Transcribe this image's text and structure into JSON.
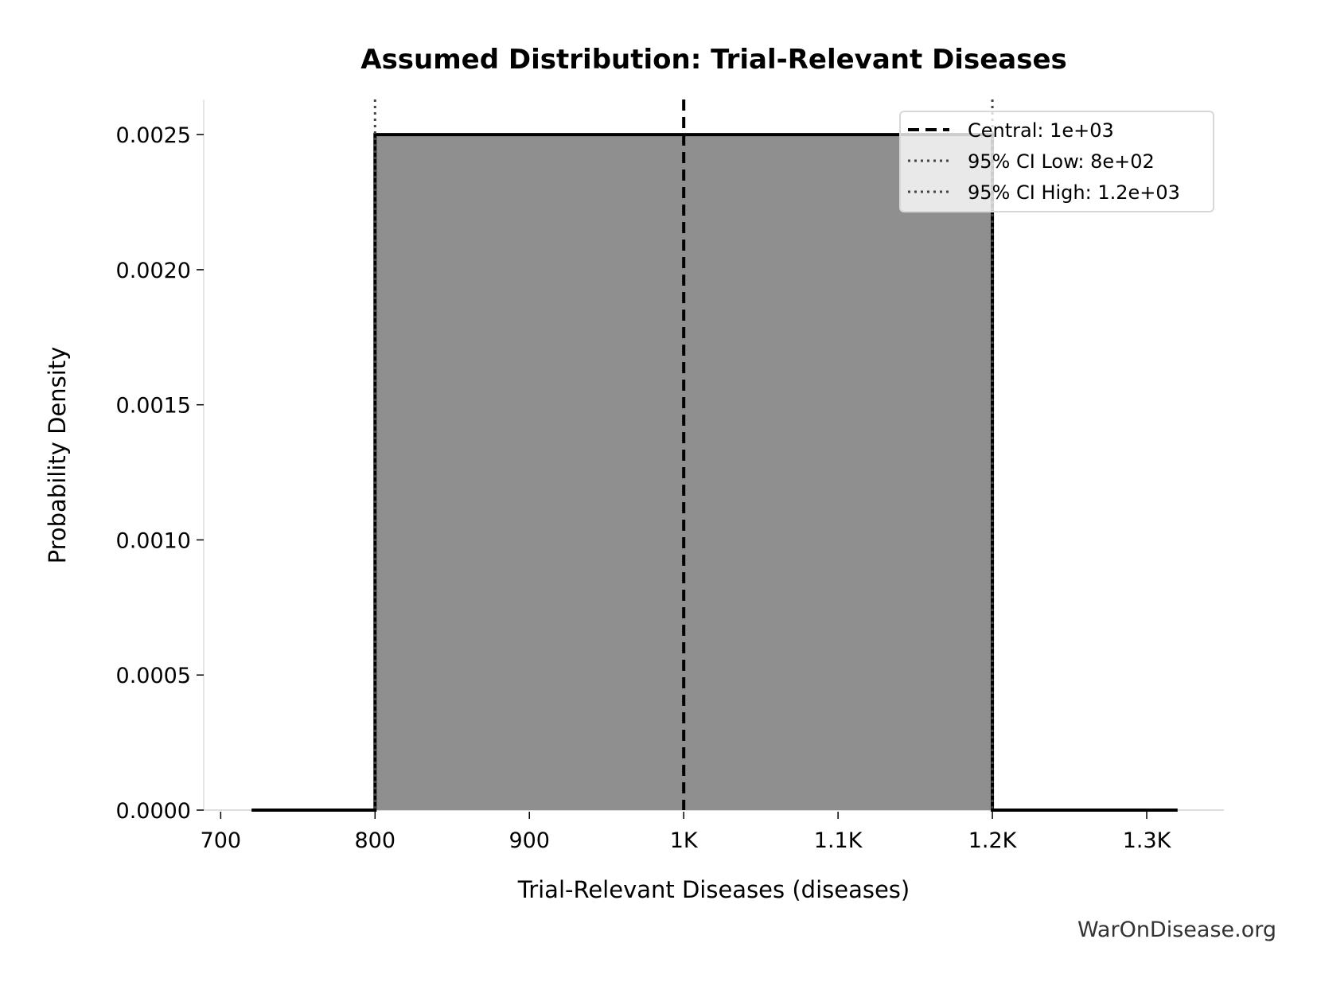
{
  "chart_data": {
    "type": "area",
    "title": "Assumed Distribution: Trial-Relevant Diseases",
    "xlabel": "Trial-Relevant Diseases (diseases)",
    "ylabel": "Probability Density",
    "xlim": [
      689,
      1350
    ],
    "ylim": [
      0,
      0.00263
    ],
    "grid": false,
    "xticks": [
      700,
      800,
      900,
      1000,
      1100,
      1200,
      1300
    ],
    "xtick_labels": [
      "700",
      "800",
      "900",
      "1K",
      "1.1K",
      "1.2K",
      "1.3K"
    ],
    "yticks": [
      0,
      0.0005,
      0.001,
      0.0015,
      0.002,
      0.0025
    ],
    "ytick_labels": [
      "0.0000",
      "0.0005",
      "0.0010",
      "0.0015",
      "0.0020",
      "0.0025"
    ],
    "series": [
      {
        "x": [
          720,
          800,
          800,
          1200,
          1200,
          1320
        ],
        "y": [
          0,
          0,
          0.0025,
          0.0025,
          0,
          0
        ],
        "fill": "#8f8f8f",
        "line": "#000000"
      }
    ],
    "reference_lines": [
      {
        "label": "Central: 1e+03",
        "x": 1000,
        "style": "dashed",
        "color": "#000000"
      },
      {
        "label": "95% CI Low: 8e+02",
        "x": 800,
        "style": "dotted",
        "color": "#444444"
      },
      {
        "label": "95% CI High: 1.2e+03",
        "x": 1200,
        "style": "dotted",
        "color": "#444444"
      }
    ],
    "legend_position": "top-right",
    "watermark": "WarOnDisease.org"
  }
}
